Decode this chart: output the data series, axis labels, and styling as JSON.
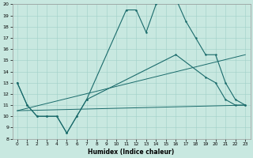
{
  "xlabel": "Humidex (Indice chaleur)",
  "xlim": [
    -0.5,
    23.5
  ],
  "ylim": [
    8,
    20
  ],
  "xtick_labels": [
    "0",
    "1",
    "2",
    "3",
    "4",
    "5",
    "6",
    "7",
    "8",
    "9",
    "10",
    "11",
    "12",
    "13",
    "14",
    "15",
    "16",
    "17",
    "18",
    "19",
    "20",
    "21",
    "22",
    "23"
  ],
  "xtick_vals": [
    0,
    1,
    2,
    3,
    4,
    5,
    6,
    7,
    8,
    9,
    10,
    11,
    12,
    13,
    14,
    15,
    16,
    17,
    18,
    19,
    20,
    21,
    22,
    23
  ],
  "ytick_vals": [
    8,
    9,
    10,
    11,
    12,
    13,
    14,
    15,
    16,
    17,
    18,
    19,
    20
  ],
  "bg_color": "#c8e8e0",
  "line_color": "#1a6b6b",
  "curve1_x": [
    0,
    1,
    2,
    3,
    4,
    5,
    6,
    7,
    11,
    12,
    13,
    14,
    15,
    16,
    17,
    18,
    19,
    20,
    21,
    22,
    23
  ],
  "curve1_y": [
    13,
    11,
    10,
    10,
    10,
    8.5,
    10,
    11.5,
    19.5,
    19.5,
    17.5,
    20,
    20.5,
    20.5,
    18.5,
    17,
    15.5,
    15.5,
    13,
    11.5,
    11
  ],
  "curve2_x": [
    0,
    1,
    2,
    3,
    4,
    5,
    6,
    7,
    16,
    19,
    20,
    21,
    22,
    23
  ],
  "curve2_y": [
    13,
    11,
    10,
    10,
    10,
    8.5,
    10,
    11.5,
    15.5,
    13.5,
    13,
    11.5,
    11,
    11
  ],
  "line3_x": [
    0,
    23
  ],
  "line3_y": [
    10.5,
    11
  ],
  "line4_x": [
    0,
    23
  ],
  "line4_y": [
    10.5,
    15.5
  ]
}
